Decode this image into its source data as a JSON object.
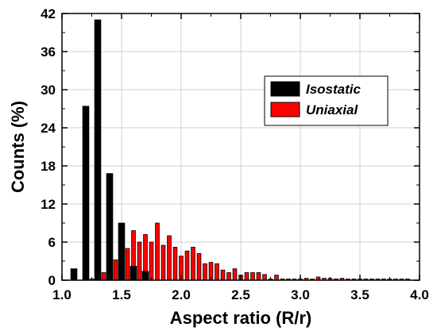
{
  "chart_data": {
    "type": "bar",
    "xlabel": "Aspect ratio (R/r)",
    "ylabel": "Counts (%)",
    "xlim": [
      1.0,
      4.0
    ],
    "ylim": [
      0,
      42
    ],
    "xticks": [
      "1.0",
      "1.5",
      "2.0",
      "2.5",
      "3.0",
      "3.5",
      "4.0"
    ],
    "yticks": [
      "0",
      "6",
      "12",
      "18",
      "24",
      "30",
      "36",
      "42"
    ],
    "grid": true,
    "legend_position": "upper-right",
    "series": [
      {
        "name": "Isostatic",
        "color": "#000000",
        "x": [
          1.1,
          1.2,
          1.3,
          1.4,
          1.5,
          1.6,
          1.7
        ],
        "values": [
          1.8,
          27.4,
          41.0,
          16.8,
          9.0,
          2.2,
          1.4
        ]
      },
      {
        "name": "Uniaxial",
        "color": "#ff0000",
        "x": [
          1.25,
          1.3,
          1.35,
          1.4,
          1.45,
          1.5,
          1.55,
          1.6,
          1.65,
          1.7,
          1.75,
          1.8,
          1.85,
          1.9,
          1.95,
          2.0,
          2.05,
          2.1,
          2.15,
          2.2,
          2.25,
          2.3,
          2.35,
          2.4,
          2.45,
          2.5,
          2.55,
          2.6,
          2.65,
          2.7,
          2.75,
          2.8,
          2.85,
          2.9,
          2.95,
          3.0,
          3.05,
          3.1,
          3.15,
          3.2,
          3.25,
          3.3,
          3.35,
          3.4,
          3.45,
          3.5,
          3.55,
          3.6,
          3.65,
          3.7,
          3.75,
          3.8,
          3.85,
          3.9
        ],
        "values": [
          0.2,
          0.5,
          1.2,
          2.5,
          3.2,
          4.0,
          5.0,
          7.8,
          6.0,
          7.2,
          6.0,
          9.0,
          5.5,
          7.0,
          5.2,
          3.8,
          4.6,
          5.2,
          4.2,
          2.6,
          2.8,
          2.6,
          1.6,
          1.2,
          1.8,
          0.8,
          1.2,
          1.2,
          1.2,
          0.9,
          0.2,
          0.8,
          0.2,
          0.2,
          0.2,
          0.2,
          0.3,
          0.2,
          0.5,
          0.3,
          0.3,
          0.2,
          0.3,
          0.2,
          0.2,
          0.2,
          0.2,
          0.2,
          0.2,
          0.2,
          0.2,
          0.2,
          0.2,
          0.2
        ]
      }
    ]
  }
}
